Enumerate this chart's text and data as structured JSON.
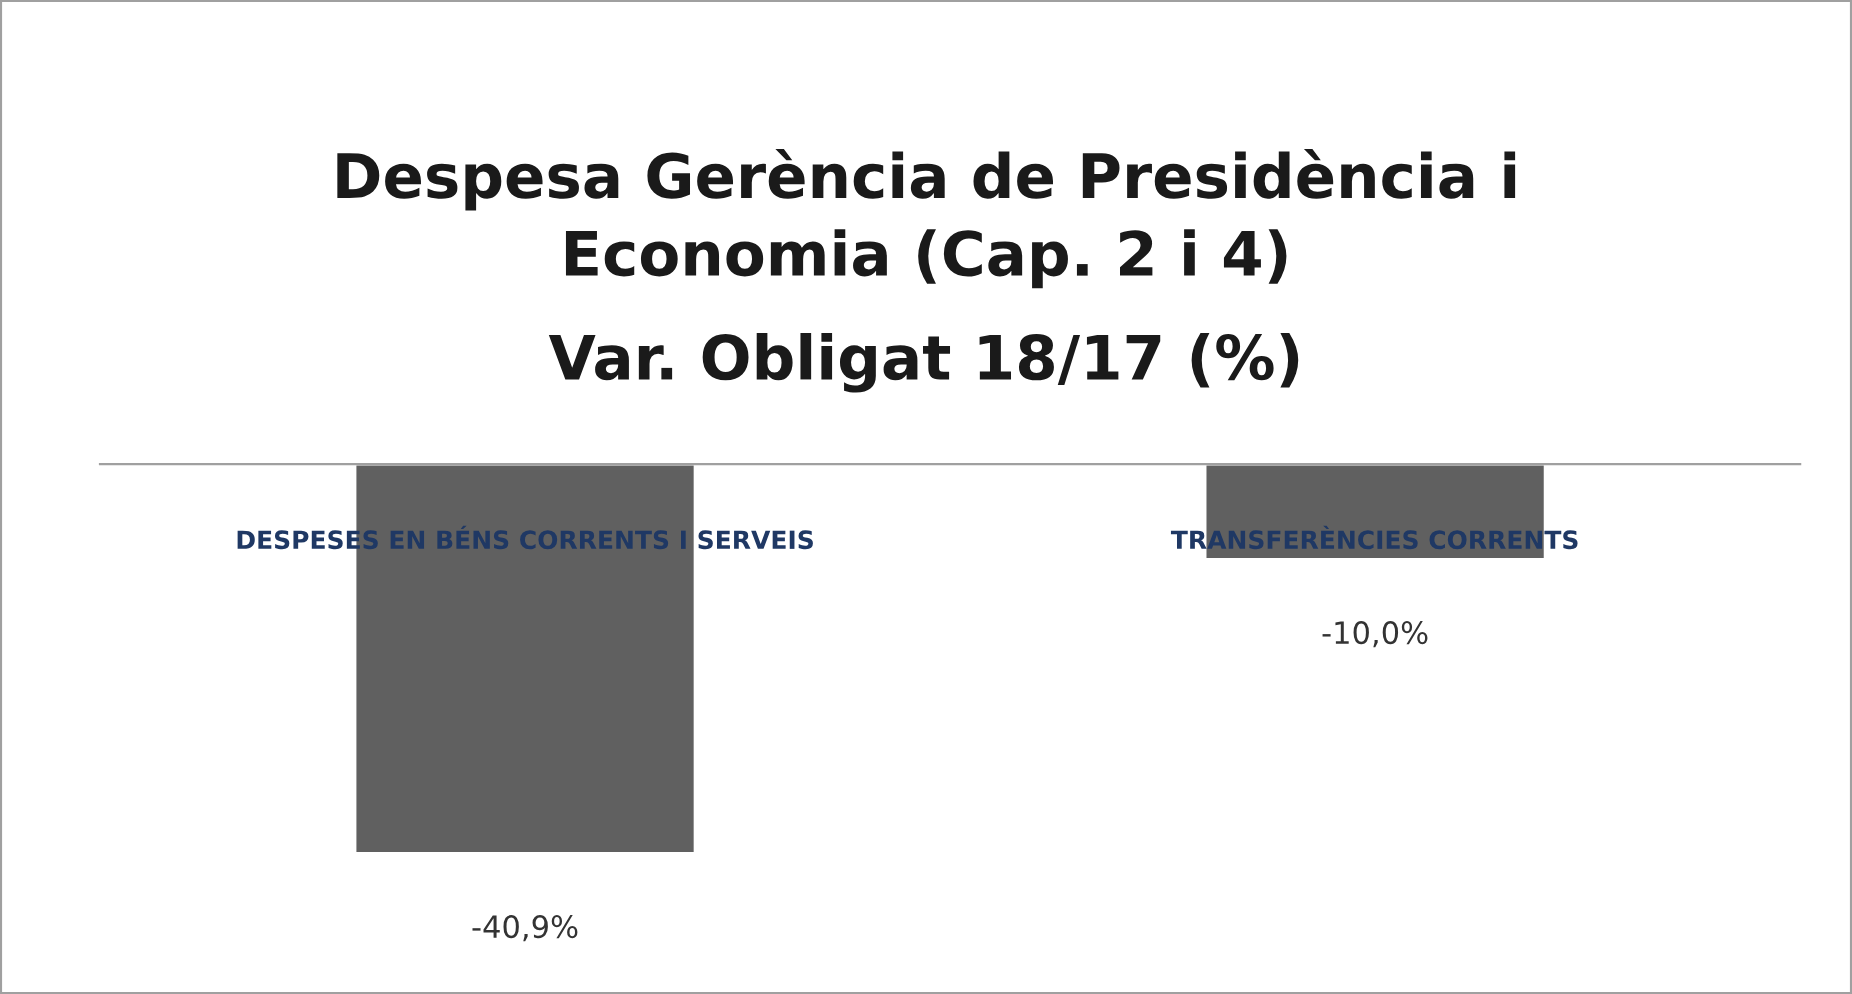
{
  "chart_data": {
    "type": "bar",
    "title": "Despesa Gerència de Presidència i\nEconomia (Cap. 2 i 4)",
    "subtitle": "Var. Obligat 18/17 (%)",
    "categories": [
      "DESPESES EN BÉNS CORRENTS I SERVEIS",
      "TRANSFERÈNCIES CORRENTS"
    ],
    "series": [
      {
        "color": "#606060",
        "values": [
          -40.9,
          -10.0
        ],
        "value_labels": [
          "-40,9%",
          "-10,0%"
        ]
      }
    ],
    "legend": false
  }
}
